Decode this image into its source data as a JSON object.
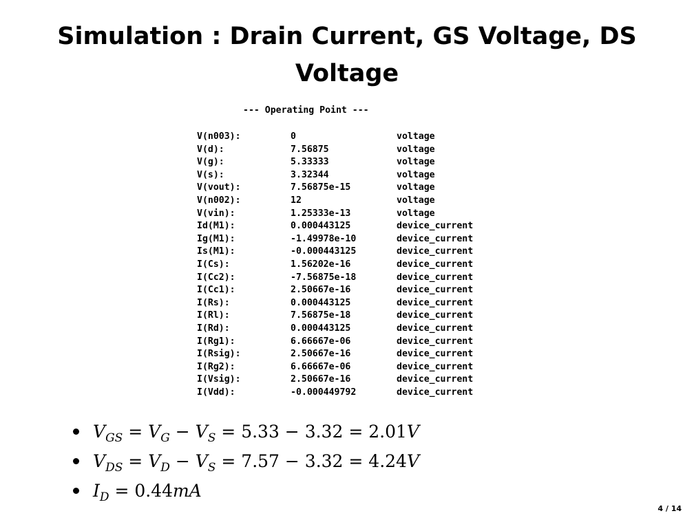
{
  "slide": {
    "title": "Simulation : Drain Current, GS Voltage, DS Voltage",
    "page_number": "4 / 14"
  },
  "operating_point": {
    "heading": "--- Operating Point ---",
    "rows": [
      {
        "name": "V(n003):",
        "value": "0",
        "type": "voltage"
      },
      {
        "name": "V(d):",
        "value": "7.56875",
        "type": "voltage"
      },
      {
        "name": "V(g):",
        "value": "5.33333",
        "type": "voltage"
      },
      {
        "name": "V(s):",
        "value": "3.32344",
        "type": "voltage"
      },
      {
        "name": "V(vout):",
        "value": "7.56875e-15",
        "type": "voltage"
      },
      {
        "name": "V(n002):",
        "value": "12",
        "type": "voltage"
      },
      {
        "name": "V(vin):",
        "value": "1.25333e-13",
        "type": "voltage"
      },
      {
        "name": "Id(M1):",
        "value": "0.000443125",
        "type": "device_current"
      },
      {
        "name": "Ig(M1):",
        "value": "-1.49978e-10",
        "type": "device_current"
      },
      {
        "name": "Is(M1):",
        "value": "-0.000443125",
        "type": "device_current"
      },
      {
        "name": "I(Cs):",
        "value": "1.56202e-16",
        "type": "device_current"
      },
      {
        "name": "I(Cc2):",
        "value": "-7.56875e-18",
        "type": "device_current"
      },
      {
        "name": "I(Cc1):",
        "value": "2.50667e-16",
        "type": "device_current"
      },
      {
        "name": "I(Rs):",
        "value": "0.000443125",
        "type": "device_current"
      },
      {
        "name": "I(Rl):",
        "value": "7.56875e-18",
        "type": "device_current"
      },
      {
        "name": "I(Rd):",
        "value": "0.000443125",
        "type": "device_current"
      },
      {
        "name": "I(Rg1):",
        "value": "6.66667e-06",
        "type": "device_current"
      },
      {
        "name": "I(Rsig):",
        "value": "2.50667e-16",
        "type": "device_current"
      },
      {
        "name": "I(Rg2):",
        "value": "6.66667e-06",
        "type": "device_current"
      },
      {
        "name": "I(Vsig):",
        "value": "2.50667e-16",
        "type": "device_current"
      },
      {
        "name": "I(Vdd):",
        "value": "-0.000449792",
        "type": "device_current"
      }
    ]
  },
  "bullets": [
    {
      "lhs": "V",
      "lhs_sub": "GS",
      "eq1": " = ",
      "t1": "V",
      "t1_sub": "G",
      "op": " − ",
      "t2": "V",
      "t2_sub": "S",
      "rest": " = 5.33 − 3.32 = 2.01",
      "unit": "V"
    },
    {
      "lhs": "V",
      "lhs_sub": "DS",
      "eq1": " = ",
      "t1": "V",
      "t1_sub": "D",
      "op": " − ",
      "t2": "V",
      "t2_sub": "S",
      "rest": " = 7.57 − 3.32 = 4.24",
      "unit": "V"
    },
    {
      "lhs": "I",
      "lhs_sub": "D",
      "eq1": " = ",
      "t1": "",
      "t1_sub": "",
      "op": "",
      "t2": "",
      "t2_sub": "",
      "rest": "0.44",
      "unit": "mA"
    }
  ]
}
